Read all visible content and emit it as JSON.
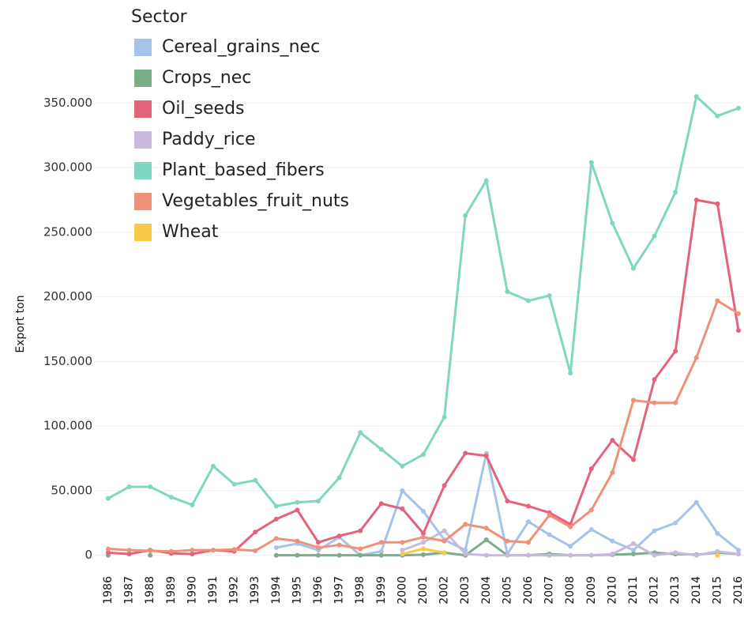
{
  "chart_data": {
    "type": "line",
    "y_label": "Export ton",
    "legend_title": "Sector",
    "categories": [
      "1986",
      "1987",
      "1988",
      "1989",
      "1990",
      "1991",
      "1992",
      "1993",
      "1994",
      "1995",
      "1996",
      "1997",
      "1998",
      "1999",
      "2000",
      "2001",
      "2002",
      "2003",
      "2004",
      "2005",
      "2006",
      "2007",
      "2008",
      "2009",
      "2010",
      "2011",
      "2012",
      "2013",
      "2014",
      "2015",
      "2016"
    ],
    "ylim": [
      -10000,
      360000
    ],
    "yticks": [
      0,
      {
        "value": 50000,
        "label": "50.000"
      },
      {
        "value": 100000,
        "label": "100.000"
      },
      {
        "value": 150000,
        "label": "150.000"
      },
      {
        "value": 200000,
        "label": "200.000"
      },
      {
        "value": 250000,
        "label": "250.000"
      },
      {
        "value": 300000,
        "label": "300.000"
      },
      {
        "value": 350000,
        "label": "350.000"
      }
    ],
    "grid": true,
    "series": [
      {
        "name": "Cereal_grains_nec",
        "color": "#a4c4ea",
        "values": [
          null,
          null,
          null,
          null,
          null,
          null,
          null,
          null,
          6000,
          9000,
          4000,
          14000,
          0,
          3000,
          50000,
          34000,
          12000,
          4000,
          79000,
          1000,
          26000,
          16000,
          7000,
          20000,
          11000,
          4000,
          19000,
          25000,
          41000,
          17000,
          4000
        ]
      },
      {
        "name": "Crops_nec",
        "color": "#7aae86",
        "values": [
          0,
          null,
          0,
          null,
          null,
          null,
          null,
          null,
          0,
          0,
          0,
          0,
          0,
          0,
          0,
          500,
          2000,
          0,
          12000,
          0,
          0,
          1000,
          0,
          0,
          500,
          1000,
          2000,
          1000,
          500,
          2000,
          1000
        ]
      },
      {
        "name": "Oil_seeds",
        "color": "#e4637c",
        "values": [
          2000,
          1000,
          4000,
          1500,
          1000,
          4000,
          3000,
          18000,
          28000,
          35000,
          10000,
          15000,
          19000,
          40000,
          36000,
          17000,
          54000,
          79000,
          77000,
          42000,
          38000,
          33000,
          24000,
          67000,
          89000,
          74000,
          136000,
          158000,
          275000,
          272000,
          174000
        ]
      },
      {
        "name": "Paddy_rice",
        "color": "#c9b9dc",
        "values": [
          null,
          null,
          null,
          null,
          null,
          null,
          null,
          null,
          null,
          null,
          null,
          null,
          null,
          null,
          4000,
          10000,
          19000,
          1000,
          0,
          0,
          0,
          0,
          0,
          0,
          1000,
          9000,
          0,
          2000,
          0,
          3000,
          1000
        ]
      },
      {
        "name": "Plant_based_fibers",
        "color": "#7fd6c2",
        "values": [
          44000,
          53000,
          53000,
          45000,
          39000,
          69000,
          55000,
          58000,
          38000,
          41000,
          42000,
          60000,
          95000,
          82000,
          69000,
          78000,
          107000,
          263000,
          290000,
          204000,
          197000,
          201000,
          141000,
          304000,
          257000,
          222000,
          247000,
          281000,
          355000,
          340000,
          346000
        ]
      },
      {
        "name": "Vegetables_fruit_nuts",
        "color": "#ef9078",
        "values": [
          5000,
          4000,
          3500,
          3000,
          4000,
          4000,
          4500,
          3500,
          13000,
          11000,
          6000,
          8000,
          5000,
          10000,
          10000,
          14000,
          11000,
          24000,
          21000,
          11000,
          10000,
          31000,
          22000,
          35000,
          64000,
          120000,
          118000,
          118000,
          153000,
          197000,
          187000
        ]
      },
      {
        "name": "Wheat",
        "color": "#f8c84a",
        "values": [
          null,
          null,
          null,
          null,
          null,
          null,
          null,
          null,
          null,
          null,
          null,
          null,
          null,
          null,
          1000,
          5000,
          2000,
          null,
          null,
          null,
          null,
          null,
          null,
          null,
          null,
          null,
          null,
          null,
          null,
          0,
          null
        ]
      }
    ]
  }
}
